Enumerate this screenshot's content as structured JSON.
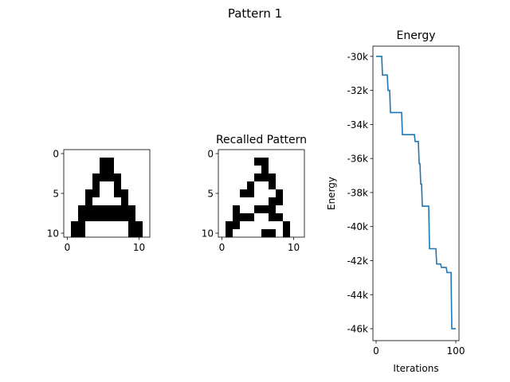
{
  "figure": {
    "title": "Pattern 1"
  },
  "chart_data": [
    {
      "type": "heatmap",
      "title": "",
      "xlim": [
        -0.5,
        11.5
      ],
      "ylim": [
        -0.5,
        10.5
      ],
      "xticks": [
        0,
        10
      ],
      "yticks": [
        0,
        5,
        10
      ],
      "cmap": [
        "#ffffff",
        "#000000"
      ],
      "grid": [
        [
          0,
          0,
          0,
          0,
          0,
          0,
          0,
          0,
          0,
          0,
          0,
          0
        ],
        [
          0,
          0,
          0,
          0,
          0,
          1,
          1,
          0,
          0,
          0,
          0,
          0
        ],
        [
          0,
          0,
          0,
          0,
          0,
          1,
          1,
          0,
          0,
          0,
          0,
          0
        ],
        [
          0,
          0,
          0,
          0,
          1,
          1,
          1,
          1,
          0,
          0,
          0,
          0
        ],
        [
          0,
          0,
          0,
          0,
          1,
          0,
          0,
          1,
          0,
          0,
          0,
          0
        ],
        [
          0,
          0,
          0,
          1,
          1,
          0,
          0,
          1,
          1,
          0,
          0,
          0
        ],
        [
          0,
          0,
          0,
          1,
          0,
          0,
          0,
          0,
          1,
          0,
          0,
          0
        ],
        [
          0,
          0,
          1,
          1,
          1,
          1,
          1,
          1,
          1,
          1,
          0,
          0
        ],
        [
          0,
          0,
          1,
          1,
          1,
          1,
          1,
          1,
          1,
          1,
          0,
          0
        ],
        [
          0,
          1,
          1,
          0,
          0,
          0,
          0,
          0,
          0,
          1,
          1,
          0
        ],
        [
          0,
          1,
          1,
          0,
          0,
          0,
          0,
          0,
          0,
          1,
          1,
          0
        ]
      ]
    },
    {
      "type": "heatmap",
      "title": "Recalled Pattern",
      "xlim": [
        -0.5,
        11.5
      ],
      "ylim": [
        -0.5,
        10.5
      ],
      "xticks": [
        0,
        10
      ],
      "yticks": [
        0,
        5,
        10
      ],
      "cmap": [
        "#ffffff",
        "#000000"
      ],
      "grid": [
        [
          0,
          0,
          0,
          0,
          0,
          0,
          0,
          0,
          0,
          0,
          0,
          0
        ],
        [
          0,
          0,
          0,
          0,
          0,
          1,
          1,
          0,
          0,
          0,
          0,
          0
        ],
        [
          0,
          0,
          0,
          0,
          0,
          0,
          1,
          0,
          0,
          0,
          0,
          0
        ],
        [
          0,
          0,
          0,
          0,
          0,
          1,
          1,
          1,
          0,
          0,
          0,
          0
        ],
        [
          0,
          0,
          0,
          0,
          1,
          0,
          0,
          1,
          0,
          0,
          0,
          0
        ],
        [
          0,
          0,
          0,
          1,
          1,
          0,
          0,
          0,
          1,
          0,
          0,
          0
        ],
        [
          0,
          0,
          0,
          0,
          0,
          0,
          0,
          1,
          1,
          0,
          0,
          0
        ],
        [
          0,
          0,
          1,
          0,
          0,
          1,
          1,
          1,
          0,
          0,
          0,
          0
        ],
        [
          0,
          0,
          1,
          1,
          1,
          0,
          0,
          1,
          1,
          0,
          0,
          0
        ],
        [
          0,
          1,
          1,
          0,
          0,
          0,
          0,
          0,
          0,
          1,
          0,
          0
        ],
        [
          0,
          1,
          0,
          0,
          0,
          0,
          1,
          1,
          0,
          1,
          0,
          0
        ]
      ]
    },
    {
      "type": "line",
      "title": "Energy",
      "xlabel": "Iterations",
      "ylabel": "Energy",
      "xlim": [
        -4,
        104
      ],
      "ylim": [
        -46700,
        -29400
      ],
      "xticks": [
        0,
        100
      ],
      "xtick_labels": [
        "0",
        "100"
      ],
      "yticks": [
        -30000,
        -32000,
        -34000,
        -36000,
        -38000,
        -40000,
        -42000,
        -44000,
        -46000
      ],
      "ytick_labels": [
        "-30k",
        "-32k",
        "-34k",
        "-36k",
        "-38k",
        "-40k",
        "-42k",
        "-44k",
        "-46k"
      ],
      "color": "#1f77b4",
      "series": [
        {
          "x": [
            0,
            7,
            8,
            14,
            15,
            17,
            18,
            32,
            33,
            48,
            49,
            53,
            54,
            55,
            56,
            57,
            58,
            66,
            67,
            75,
            76,
            81,
            82,
            88,
            89,
            94,
            95,
            100
          ],
          "y": [
            -30000,
            -30000,
            -31100,
            -31100,
            -32000,
            -32000,
            -33300,
            -33300,
            -34600,
            -34600,
            -35000,
            -35000,
            -36300,
            -36300,
            -37500,
            -37500,
            -38800,
            -38800,
            -41300,
            -41300,
            -42200,
            -42200,
            -42400,
            -42400,
            -42700,
            -42700,
            -46000,
            -46000
          ]
        }
      ]
    }
  ]
}
